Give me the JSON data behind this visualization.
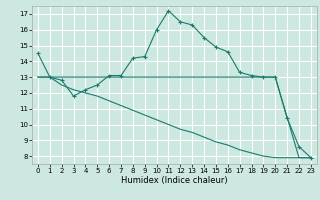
{
  "xlabel": "Humidex (Indice chaleur)",
  "bg_color": "#cce8e0",
  "grid_color": "#ffffff",
  "line_color": "#1a7a6e",
  "xlim": [
    -0.5,
    23.5
  ],
  "ylim": [
    7.5,
    17.5
  ],
  "yticks": [
    8,
    9,
    10,
    11,
    12,
    13,
    14,
    15,
    16,
    17
  ],
  "xticks": [
    0,
    1,
    2,
    3,
    4,
    5,
    6,
    7,
    8,
    9,
    10,
    11,
    12,
    13,
    14,
    15,
    16,
    17,
    18,
    19,
    20,
    21,
    22,
    23
  ],
  "line1_x": [
    0,
    1,
    2,
    3,
    4,
    5,
    6,
    7,
    8,
    9,
    10,
    11,
    12,
    13,
    14,
    15,
    16,
    17,
    18,
    19,
    20,
    21,
    22,
    23
  ],
  "line1_y": [
    14.5,
    13.0,
    12.8,
    11.8,
    12.2,
    12.5,
    13.1,
    13.1,
    14.2,
    14.3,
    16.0,
    17.2,
    16.5,
    16.3,
    15.5,
    14.9,
    14.6,
    13.3,
    13.1,
    13.0,
    13.0,
    10.4,
    8.6,
    7.9
  ],
  "line2_x": [
    0,
    1,
    20,
    22,
    23
  ],
  "line2_y": [
    13.0,
    13.0,
    13.0,
    7.9,
    7.9
  ],
  "line3_x": [
    0,
    1,
    2,
    3,
    4,
    5,
    6,
    7,
    8,
    9,
    10,
    11,
    12,
    13,
    14,
    15,
    16,
    17,
    18,
    19,
    20,
    21,
    22,
    23
  ],
  "line3_y": [
    13.0,
    13.0,
    12.5,
    12.2,
    12.0,
    11.8,
    11.5,
    11.2,
    10.9,
    10.6,
    10.3,
    10.0,
    9.7,
    9.5,
    9.2,
    8.9,
    8.7,
    8.4,
    8.2,
    8.0,
    7.9,
    7.9,
    7.9,
    7.9
  ]
}
